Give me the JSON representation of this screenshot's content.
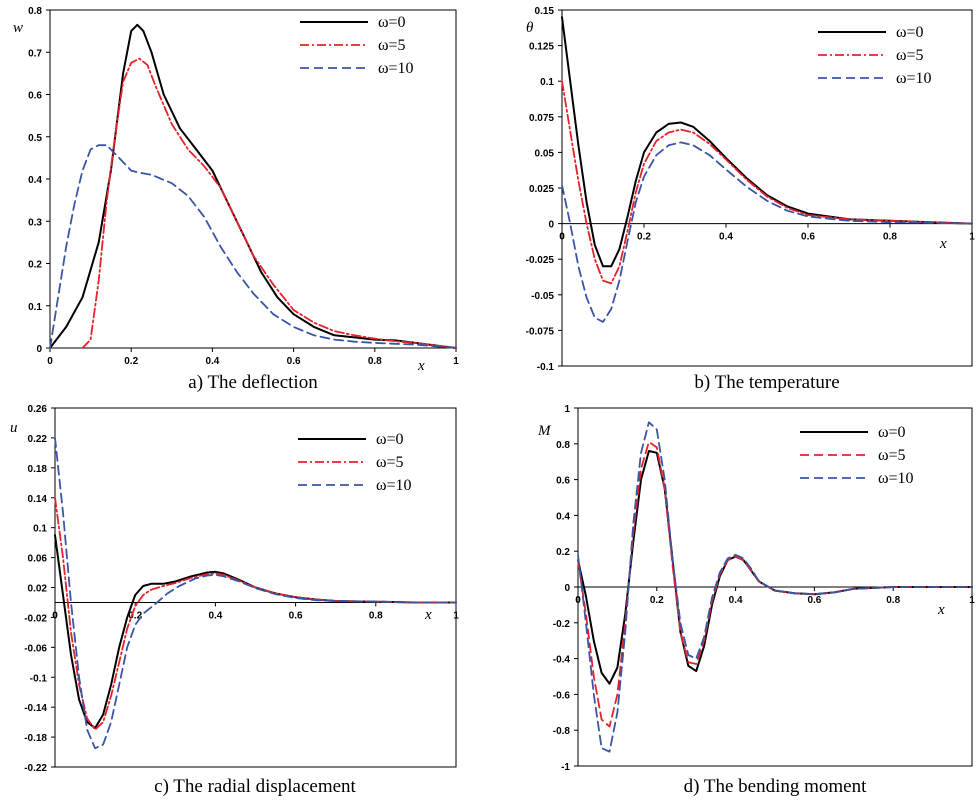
{
  "chart_data": [
    {
      "type": "line",
      "caption": "a) The deflection",
      "ylabel": "w",
      "xlabel": "x",
      "xlim": [
        0,
        1
      ],
      "ylim": [
        0,
        0.8
      ],
      "xticks": [
        0,
        0.2,
        0.4,
        0.6,
        0.8,
        1
      ],
      "xtick_labels": [
        "0",
        "0.2",
        "0.4",
        "0.6",
        "0.8",
        "1"
      ],
      "yticks": [
        0,
        0.1,
        0.2,
        0.3,
        0.4,
        0.5,
        0.6,
        0.7,
        0.8
      ],
      "ytick_labels": [
        "0",
        "0.1",
        "0.2",
        "0.3",
        "0.4",
        "0.5",
        "0.6",
        "0.7",
        "0.8"
      ],
      "legend_position": "top-right",
      "series": [
        {
          "name": "ω=0",
          "color": "#000000",
          "dash": "solid",
          "x": [
            0,
            0.04,
            0.08,
            0.12,
            0.15,
            0.18,
            0.2,
            0.215,
            0.23,
            0.25,
            0.28,
            0.32,
            0.36,
            0.4,
            0.44,
            0.48,
            0.52,
            0.56,
            0.6,
            0.65,
            0.7,
            0.75,
            0.8,
            0.85,
            0.9,
            0.95,
            1
          ],
          "y": [
            0,
            0.05,
            0.12,
            0.25,
            0.42,
            0.65,
            0.75,
            0.765,
            0.75,
            0.7,
            0.6,
            0.52,
            0.47,
            0.42,
            0.34,
            0.26,
            0.18,
            0.12,
            0.08,
            0.05,
            0.03,
            0.025,
            0.02,
            0.018,
            0.012,
            0.006,
            0
          ]
        },
        {
          "name": "ω=5",
          "color": "#e8202a",
          "dash": "dashdot",
          "x": [
            0.08,
            0.1,
            0.12,
            0.14,
            0.16,
            0.18,
            0.2,
            0.22,
            0.24,
            0.26,
            0.3,
            0.34,
            0.38,
            0.42,
            0.46,
            0.5,
            0.55,
            0.6,
            0.65,
            0.7,
            0.75,
            0.8,
            0.85,
            0.9,
            0.95,
            1
          ],
          "y": [
            0,
            0.02,
            0.16,
            0.35,
            0.5,
            0.63,
            0.675,
            0.685,
            0.67,
            0.62,
            0.53,
            0.47,
            0.43,
            0.38,
            0.3,
            0.22,
            0.15,
            0.09,
            0.06,
            0.04,
            0.03,
            0.022,
            0.016,
            0.012,
            0.006,
            0
          ]
        },
        {
          "name": "ω=10",
          "color": "#3a55a4",
          "dash": "dash",
          "x": [
            0,
            0.02,
            0.04,
            0.06,
            0.08,
            0.1,
            0.12,
            0.14,
            0.16,
            0.18,
            0.2,
            0.22,
            0.25,
            0.3,
            0.34,
            0.38,
            0.42,
            0.46,
            0.5,
            0.55,
            0.6,
            0.65,
            0.7,
            0.75,
            0.8,
            0.85,
            0.9,
            0.95,
            1
          ],
          "y": [
            0,
            0.12,
            0.24,
            0.34,
            0.42,
            0.47,
            0.48,
            0.48,
            0.46,
            0.44,
            0.42,
            0.415,
            0.41,
            0.39,
            0.36,
            0.31,
            0.24,
            0.18,
            0.13,
            0.08,
            0.05,
            0.03,
            0.02,
            0.015,
            0.012,
            0.01,
            0.008,
            0.004,
            0
          ]
        }
      ]
    },
    {
      "type": "line",
      "caption": "b) The temperature",
      "ylabel": "θ",
      "xlabel": "x",
      "xlim": [
        0,
        1
      ],
      "ylim": [
        -0.1,
        0.15
      ],
      "xticks": [
        0,
        0.2,
        0.4,
        0.6,
        0.8,
        1
      ],
      "xtick_labels": [
        "0",
        "0.2",
        "0.4",
        "0.6",
        "0.8",
        "1"
      ],
      "yticks": [
        -0.1,
        -0.075,
        -0.05,
        -0.025,
        0,
        0.025,
        0.05,
        0.075,
        0.1,
        0.125,
        0.15
      ],
      "ytick_labels": [
        "-0.1",
        "-0.075",
        "-0.05",
        "-0.025",
        "0",
        "0.025",
        "0.05",
        "0.075",
        "0.1",
        "0.125",
        "0.15"
      ],
      "legend_position": "top-right",
      "series": [
        {
          "name": "ω=0",
          "color": "#000000",
          "dash": "solid",
          "x": [
            0,
            0.02,
            0.04,
            0.06,
            0.08,
            0.1,
            0.12,
            0.14,
            0.16,
            0.18,
            0.2,
            0.23,
            0.26,
            0.29,
            0.32,
            0.36,
            0.4,
            0.45,
            0.5,
            0.55,
            0.6,
            0.7,
            0.8,
            0.9,
            1
          ],
          "y": [
            0.145,
            0.1,
            0.055,
            0.015,
            -0.015,
            -0.03,
            -0.03,
            -0.018,
            0.005,
            0.03,
            0.05,
            0.064,
            0.07,
            0.071,
            0.068,
            0.058,
            0.046,
            0.032,
            0.02,
            0.012,
            0.007,
            0.003,
            0.002,
            0.001,
            0
          ]
        },
        {
          "name": "ω=5",
          "color": "#e8202a",
          "dash": "dashdot",
          "x": [
            0,
            0.02,
            0.04,
            0.06,
            0.08,
            0.1,
            0.12,
            0.14,
            0.16,
            0.18,
            0.2,
            0.23,
            0.26,
            0.29,
            0.32,
            0.36,
            0.4,
            0.45,
            0.5,
            0.55,
            0.6,
            0.7,
            0.8,
            0.9,
            1
          ],
          "y": [
            0.1,
            0.065,
            0.03,
            0.0,
            -0.025,
            -0.04,
            -0.042,
            -0.03,
            -0.005,
            0.022,
            0.042,
            0.058,
            0.064,
            0.066,
            0.064,
            0.056,
            0.045,
            0.031,
            0.019,
            0.011,
            0.006,
            0.003,
            0.002,
            0.001,
            0
          ]
        },
        {
          "name": "ω=10",
          "color": "#3a55a4",
          "dash": "dash",
          "x": [
            0,
            0.02,
            0.04,
            0.06,
            0.08,
            0.1,
            0.12,
            0.14,
            0.16,
            0.18,
            0.2,
            0.23,
            0.26,
            0.29,
            0.32,
            0.36,
            0.4,
            0.45,
            0.5,
            0.55,
            0.6,
            0.7,
            0.8,
            0.9,
            1
          ],
          "y": [
            0.027,
            0.0,
            -0.03,
            -0.052,
            -0.066,
            -0.069,
            -0.06,
            -0.04,
            -0.012,
            0.015,
            0.033,
            0.048,
            0.055,
            0.057,
            0.055,
            0.048,
            0.038,
            0.026,
            0.016,
            0.009,
            0.005,
            0.002,
            0.001,
            0.0005,
            0
          ]
        }
      ]
    },
    {
      "type": "line",
      "caption": "c) The radial displacement",
      "ylabel": "u",
      "xlabel": "x",
      "xlim": [
        0,
        1
      ],
      "ylim": [
        -0.22,
        0.26
      ],
      "xticks": [
        0,
        0.2,
        0.4,
        0.6,
        0.8,
        1
      ],
      "xtick_labels": [
        "0",
        "0.2",
        "0.4",
        "0.6",
        "0.8",
        "1"
      ],
      "yticks": [
        -0.22,
        -0.18,
        -0.14,
        -0.1,
        -0.06,
        -0.02,
        0.02,
        0.06,
        0.1,
        0.14,
        0.18,
        0.22,
        0.26
      ],
      "ytick_labels": [
        "-0.22",
        "-0.18",
        "-0.14",
        "-0.1",
        "-0.06",
        "-0.02",
        "0.02",
        "0.06",
        "0.1",
        "0.14",
        "0.18",
        "0.22",
        "0.26"
      ],
      "legend_position": "top-right",
      "series": [
        {
          "name": "ω=0",
          "color": "#000000",
          "dash": "solid",
          "x": [
            0,
            0.02,
            0.04,
            0.06,
            0.08,
            0.1,
            0.12,
            0.14,
            0.16,
            0.18,
            0.2,
            0.22,
            0.24,
            0.27,
            0.3,
            0.34,
            0.38,
            0.4,
            0.42,
            0.46,
            0.5,
            0.55,
            0.6,
            0.65,
            0.7,
            0.8,
            0.9,
            1
          ],
          "y": [
            0.09,
            0.01,
            -0.07,
            -0.13,
            -0.16,
            -0.168,
            -0.15,
            -0.11,
            -0.06,
            -0.02,
            0.01,
            0.022,
            0.025,
            0.025,
            0.028,
            0.035,
            0.04,
            0.041,
            0.039,
            0.03,
            0.02,
            0.012,
            0.007,
            0.004,
            0.002,
            0.001,
            0,
            0
          ]
        },
        {
          "name": "ω=5",
          "color": "#e8202a",
          "dash": "dashdot",
          "x": [
            0,
            0.02,
            0.04,
            0.06,
            0.08,
            0.1,
            0.12,
            0.14,
            0.16,
            0.18,
            0.2,
            0.22,
            0.24,
            0.27,
            0.3,
            0.34,
            0.38,
            0.4,
            0.42,
            0.46,
            0.5,
            0.55,
            0.6,
            0.65,
            0.7,
            0.8,
            0.9,
            1
          ],
          "y": [
            0.14,
            0.06,
            -0.04,
            -0.11,
            -0.155,
            -0.17,
            -0.16,
            -0.125,
            -0.08,
            -0.035,
            -0.005,
            0.01,
            0.017,
            0.022,
            0.026,
            0.033,
            0.038,
            0.039,
            0.037,
            0.029,
            0.02,
            0.012,
            0.007,
            0.004,
            0.002,
            0.001,
            0,
            0
          ]
        },
        {
          "name": "ω=10",
          "color": "#3a55a4",
          "dash": "dash",
          "x": [
            0,
            0.02,
            0.04,
            0.06,
            0.08,
            0.1,
            0.12,
            0.14,
            0.16,
            0.18,
            0.2,
            0.22,
            0.25,
            0.28,
            0.31,
            0.35,
            0.38,
            0.4,
            0.42,
            0.46,
            0.5,
            0.55,
            0.6,
            0.65,
            0.7,
            0.8,
            0.9,
            1
          ],
          "y": [
            0.22,
            0.12,
            0.0,
            -0.1,
            -0.17,
            -0.195,
            -0.19,
            -0.16,
            -0.11,
            -0.06,
            -0.03,
            -0.015,
            -0.002,
            0.012,
            0.022,
            0.032,
            0.036,
            0.037,
            0.035,
            0.028,
            0.019,
            0.011,
            0.006,
            0.003,
            0.002,
            0.001,
            0,
            0
          ]
        }
      ]
    },
    {
      "type": "line",
      "caption": "d) The bending moment",
      "ylabel": "M",
      "xlabel": "x",
      "xlim": [
        0,
        1
      ],
      "ylim": [
        -1,
        1
      ],
      "xticks": [
        0,
        0.2,
        0.4,
        0.6,
        0.8,
        1
      ],
      "xtick_labels": [
        "0",
        "0.2",
        "0.4",
        "0.6",
        "0.8",
        "1"
      ],
      "yticks": [
        -1,
        -0.8,
        -0.6,
        -0.4,
        -0.2,
        0,
        0.2,
        0.4,
        0.6,
        0.8,
        1
      ],
      "ytick_labels": [
        "-1",
        "-0.8",
        "-0.6",
        "-0.4",
        "-0.2",
        "0",
        "0.2",
        "0.4",
        "0.6",
        "0.8",
        "1"
      ],
      "legend_position": "top-right",
      "series": [
        {
          "name": "ω=0",
          "color": "#000000",
          "dash": "solid",
          "x": [
            0,
            0.02,
            0.04,
            0.06,
            0.08,
            0.1,
            0.12,
            0.14,
            0.16,
            0.18,
            0.2,
            0.22,
            0.24,
            0.26,
            0.28,
            0.3,
            0.32,
            0.34,
            0.36,
            0.38,
            0.4,
            0.42,
            0.44,
            0.46,
            0.5,
            0.55,
            0.6,
            0.65,
            0.7,
            0.8,
            0.9,
            1
          ],
          "y": [
            0.15,
            -0.05,
            -0.3,
            -0.48,
            -0.54,
            -0.45,
            -0.15,
            0.25,
            0.6,
            0.76,
            0.75,
            0.55,
            0.15,
            -0.25,
            -0.44,
            -0.47,
            -0.33,
            -0.1,
            0.06,
            0.15,
            0.17,
            0.15,
            0.09,
            0.03,
            -0.02,
            -0.035,
            -0.04,
            -0.03,
            -0.01,
            0,
            0,
            0
          ]
        },
        {
          "name": "ω=5",
          "color": "#e8202a",
          "dash": "dash",
          "x": [
            0,
            0.02,
            0.04,
            0.06,
            0.08,
            0.1,
            0.12,
            0.14,
            0.16,
            0.18,
            0.2,
            0.22,
            0.24,
            0.26,
            0.28,
            0.3,
            0.32,
            0.34,
            0.36,
            0.38,
            0.4,
            0.42,
            0.44,
            0.46,
            0.5,
            0.55,
            0.6,
            0.65,
            0.7,
            0.8,
            0.9,
            1
          ],
          "y": [
            0.15,
            -0.15,
            -0.5,
            -0.74,
            -0.78,
            -0.6,
            -0.2,
            0.3,
            0.66,
            0.81,
            0.78,
            0.55,
            0.12,
            -0.25,
            -0.42,
            -0.43,
            -0.3,
            -0.08,
            0.07,
            0.15,
            0.17,
            0.15,
            0.09,
            0.03,
            -0.02,
            -0.035,
            -0.04,
            -0.03,
            -0.01,
            0,
            0,
            0
          ]
        },
        {
          "name": "ω=10",
          "color": "#3a55a4",
          "dash": "dash",
          "x": [
            0,
            0.02,
            0.04,
            0.06,
            0.08,
            0.1,
            0.12,
            0.14,
            0.16,
            0.18,
            0.2,
            0.22,
            0.24,
            0.26,
            0.28,
            0.3,
            0.32,
            0.34,
            0.36,
            0.38,
            0.4,
            0.42,
            0.44,
            0.46,
            0.5,
            0.55,
            0.6,
            0.65,
            0.7,
            0.8,
            0.9,
            1
          ],
          "y": [
            0.18,
            -0.2,
            -0.6,
            -0.9,
            -0.92,
            -0.7,
            -0.25,
            0.35,
            0.75,
            0.92,
            0.88,
            0.6,
            0.15,
            -0.2,
            -0.38,
            -0.4,
            -0.28,
            -0.06,
            0.08,
            0.16,
            0.18,
            0.16,
            0.1,
            0.03,
            -0.02,
            -0.035,
            -0.04,
            -0.03,
            -0.01,
            0,
            0,
            0
          ]
        }
      ]
    }
  ]
}
